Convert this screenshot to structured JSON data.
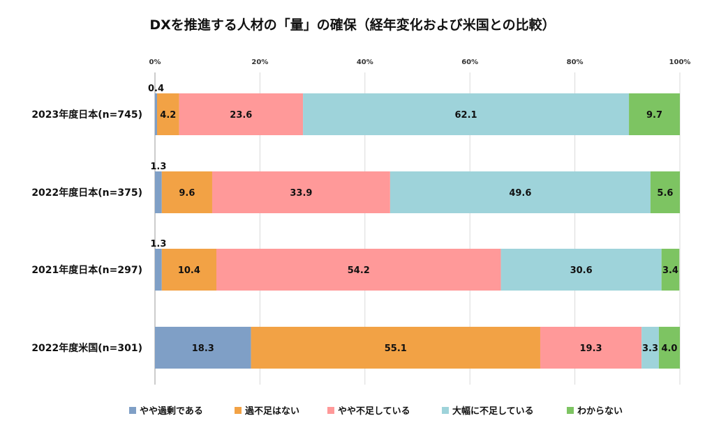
{
  "chart_data": {
    "type": "bar",
    "orientation": "horizontal",
    "stacked": "percent",
    "title": "DXを推進する人材の「量」の確保（経年変化および米国との比較）",
    "categories": [
      "2023年度日本(n=745)",
      "2022年度日本(n=375)",
      "2021年度日本(n=297)",
      "2022年度米国(n=301)"
    ],
    "series": [
      {
        "name": "やや過剰である",
        "color": "#7f9fc6",
        "values": [
          0.4,
          1.3,
          1.3,
          18.3
        ]
      },
      {
        "name": "過不足はない",
        "color": "#f2a245",
        "values": [
          4.2,
          9.6,
          10.4,
          55.1
        ]
      },
      {
        "name": "やや不足している",
        "color": "#ff9999",
        "values": [
          23.6,
          33.9,
          54.2,
          19.3
        ]
      },
      {
        "name": "大幅に不足している",
        "color": "#9ed3da",
        "values": [
          62.1,
          49.6,
          30.6,
          3.3
        ]
      },
      {
        "name": "わからない",
        "color": "#7dc462",
        "values": [
          9.7,
          5.6,
          3.4,
          4.0
        ]
      }
    ],
    "value_labels": [
      [
        "0.4",
        "4.2",
        "23.6",
        "62.1",
        "9.7"
      ],
      [
        "1.3",
        "9.6",
        "33.9",
        "49.6",
        "5.6"
      ],
      [
        "1.3",
        "10.4",
        "54.2",
        "30.6",
        "3.4"
      ],
      [
        "18.3",
        "55.1",
        "19.3",
        "3.3",
        "4.0"
      ]
    ],
    "x_ticks": [
      "0%",
      "20%",
      "40%",
      "60%",
      "80%",
      "100%"
    ],
    "xlim": [
      0,
      100
    ],
    "grid": true,
    "legend_position": "bottom"
  }
}
